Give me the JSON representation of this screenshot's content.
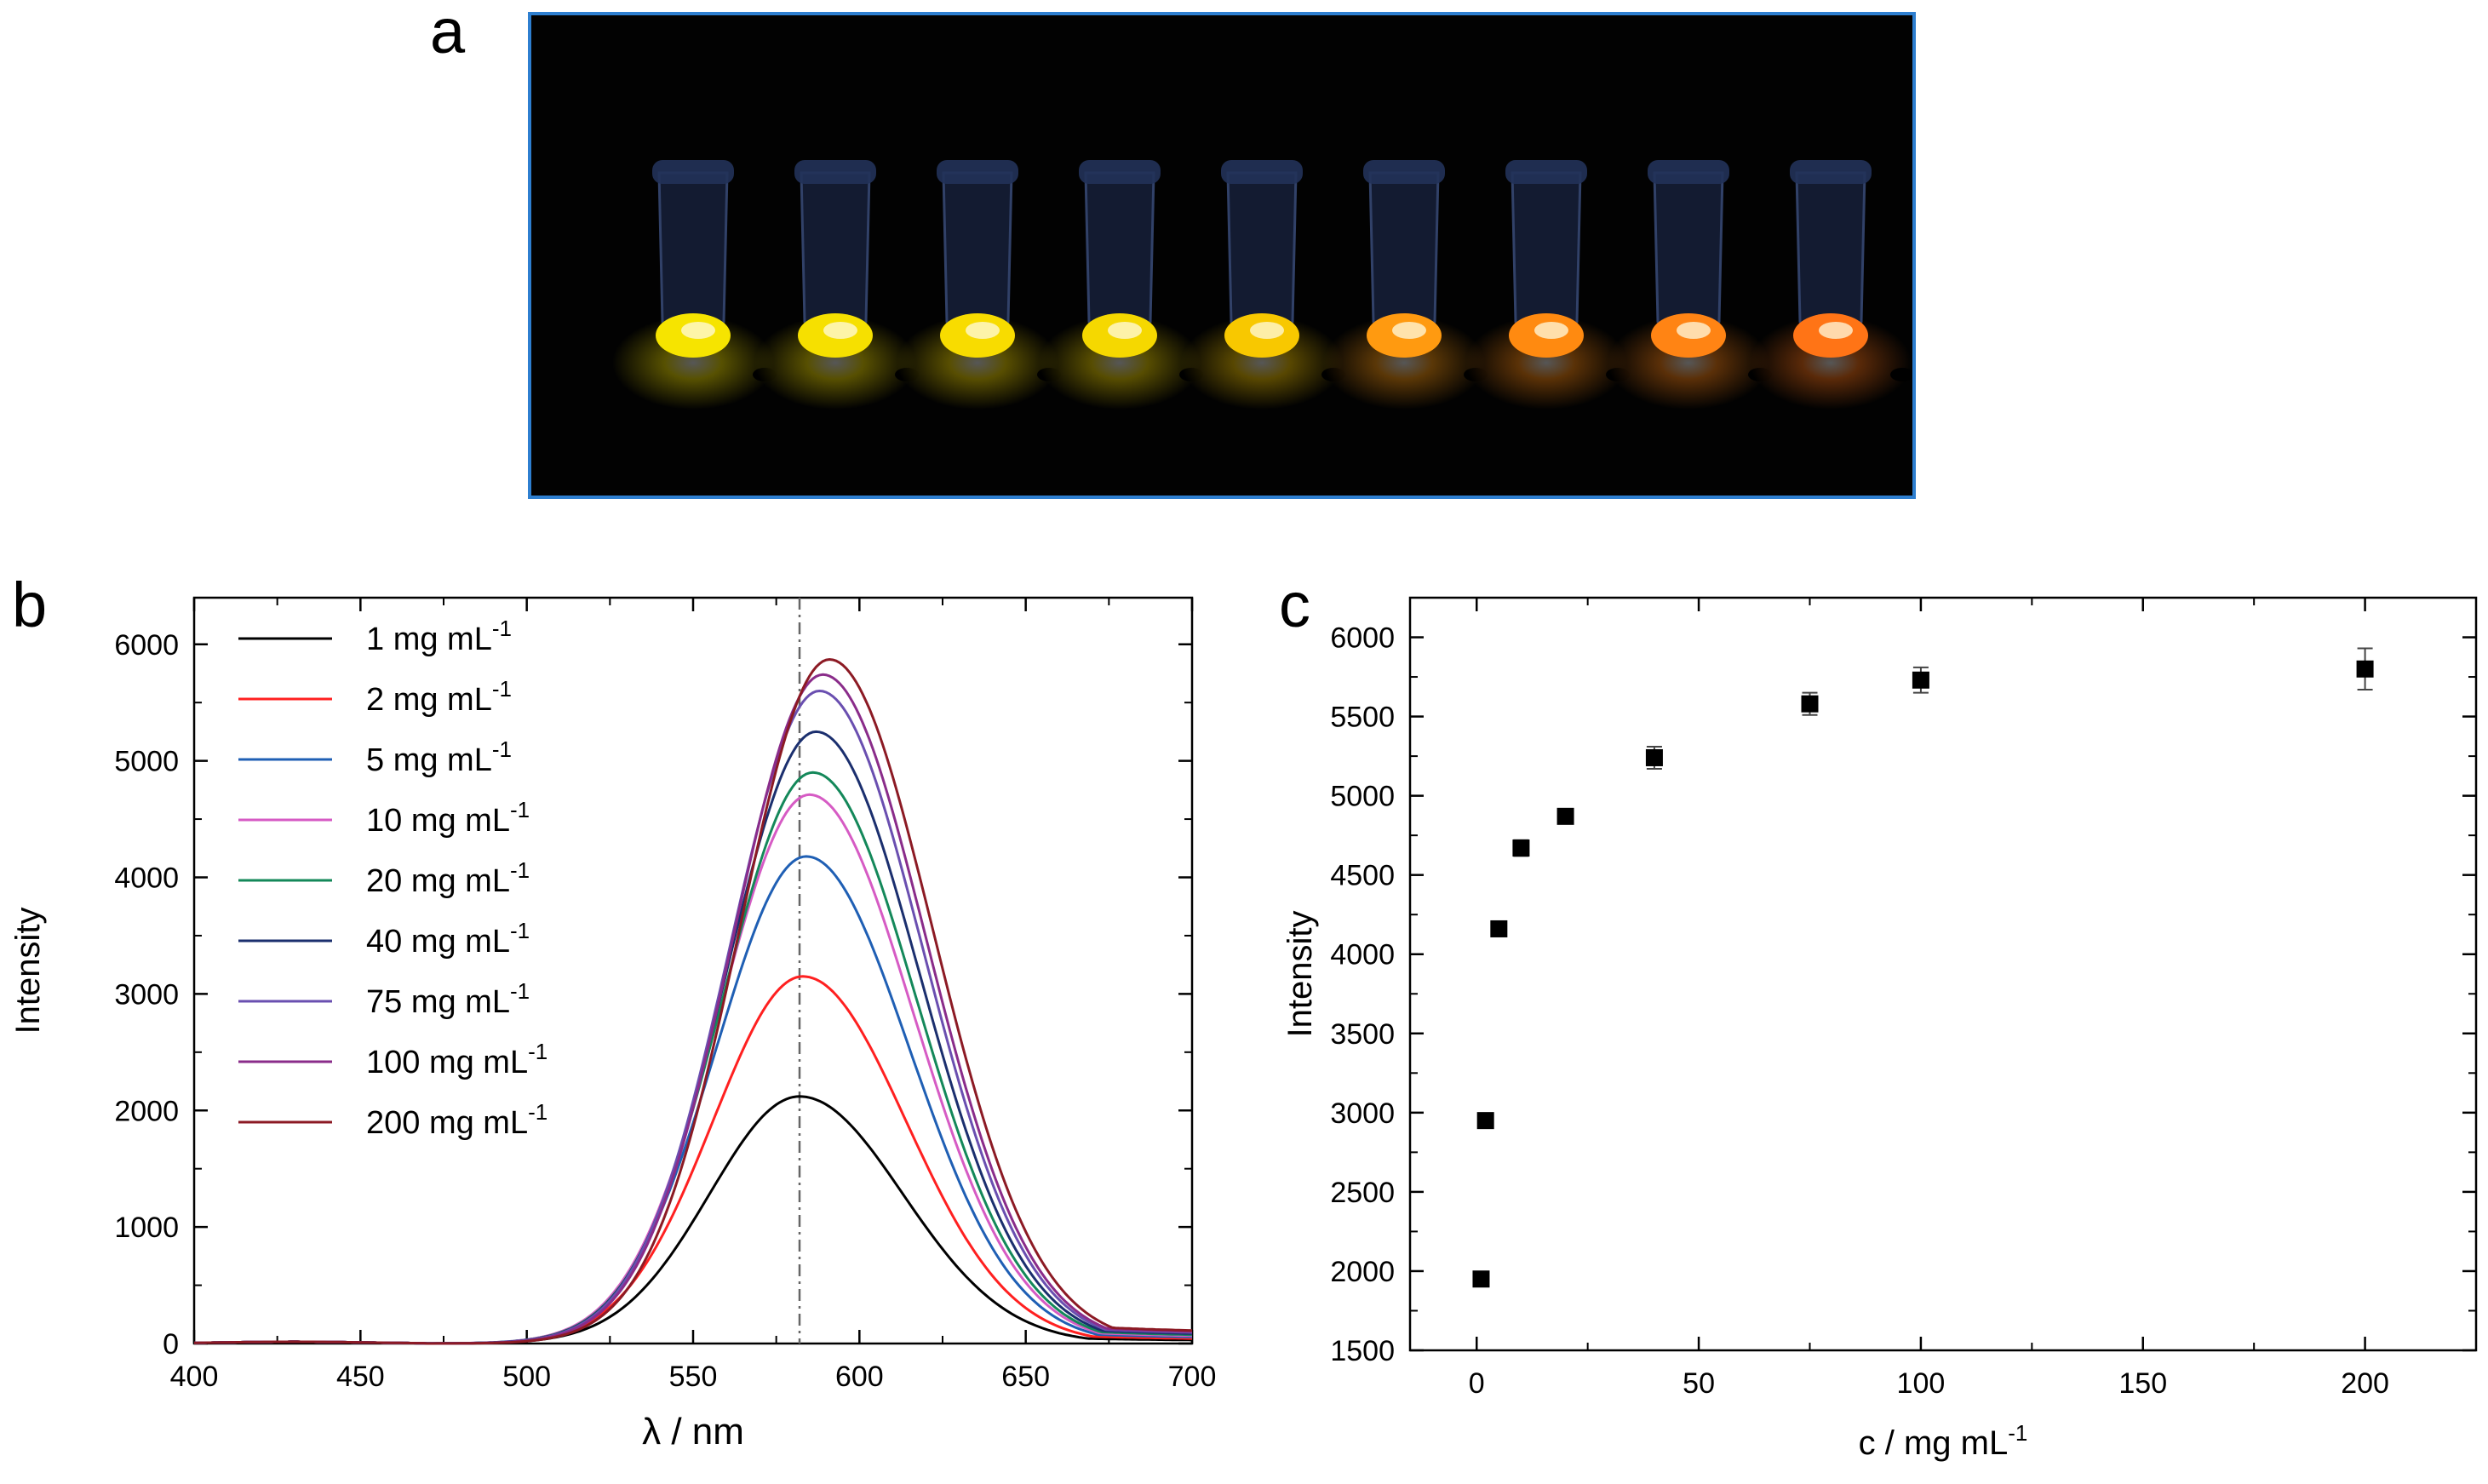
{
  "panels": {
    "a": "a",
    "b": "b",
    "c": "c"
  },
  "photo": {
    "description_name": "fluorescent-vials-photo",
    "vial_count": 9,
    "glow_colors": [
      "#f6e400",
      "#f6e000",
      "#f8dc00",
      "#f5d800",
      "#f8c800",
      "#ff9a10",
      "#ff8a10",
      "#ff8414",
      "#ff7416"
    ]
  },
  "chart_data": [
    {
      "type": "line",
      "panel": "b",
      "xlabel": "λ / nm",
      "ylabel": "Intensity",
      "xlim": [
        400,
        700
      ],
      "ylim": [
        0,
        6400
      ],
      "xticks": [
        400,
        450,
        500,
        550,
        600,
        650,
        700
      ],
      "yticks": [
        0,
        1000,
        2000,
        3000,
        4000,
        5000,
        6000
      ],
      "reference_line_x": 582,
      "legend_position": "top-left",
      "legend_unit_sup": "-1",
      "series": [
        {
          "name": "1 mg mL",
          "color": "#000000",
          "peak_x": 582,
          "peak_y": 2120
        },
        {
          "name": "2 mg mL",
          "color": "#ff2020",
          "peak_x": 583,
          "peak_y": 3150
        },
        {
          "name": "5 mg mL",
          "color": "#1f5fb4",
          "peak_x": 584,
          "peak_y": 4180
        },
        {
          "name": "10 mg mL",
          "color": "#d65bc4",
          "peak_x": 585,
          "peak_y": 4710
        },
        {
          "name": "20 mg mL",
          "color": "#14885a",
          "peak_x": 586,
          "peak_y": 4900
        },
        {
          "name": "40 mg mL",
          "color": "#1b2f6e",
          "peak_x": 587,
          "peak_y": 5250
        },
        {
          "name": "75 mg mL",
          "color": "#6a4fb0",
          "peak_x": 588,
          "peak_y": 5600
        },
        {
          "name": "100 mg mL",
          "color": "#8a2c8a",
          "peak_x": 589,
          "peak_y": 5740
        },
        {
          "name": "200 mg mL",
          "color": "#8c1a24",
          "peak_x": 591,
          "peak_y": 5870
        }
      ]
    },
    {
      "type": "scatter",
      "panel": "c",
      "xlabel": "c / mg mL",
      "xlabel_sup": "-1",
      "ylabel": "Intensity",
      "xlim": [
        -15,
        225
      ],
      "ylim": [
        1500,
        6250
      ],
      "xticks": [
        0,
        50,
        100,
        150,
        200
      ],
      "yticks": [
        1500,
        2000,
        2500,
        3000,
        3500,
        4000,
        4500,
        5000,
        5500,
        6000
      ],
      "points": [
        {
          "x": 1,
          "y": 1950,
          "err": 0
        },
        {
          "x": 2,
          "y": 2950,
          "err": 0
        },
        {
          "x": 5,
          "y": 4160,
          "err": 0
        },
        {
          "x": 10,
          "y": 4670,
          "err": 50
        },
        {
          "x": 20,
          "y": 4870,
          "err": 45
        },
        {
          "x": 40,
          "y": 5240,
          "err": 70
        },
        {
          "x": 75,
          "y": 5580,
          "err": 70
        },
        {
          "x": 100,
          "y": 5730,
          "err": 80
        },
        {
          "x": 200,
          "y": 5800,
          "err": 130
        }
      ]
    }
  ]
}
